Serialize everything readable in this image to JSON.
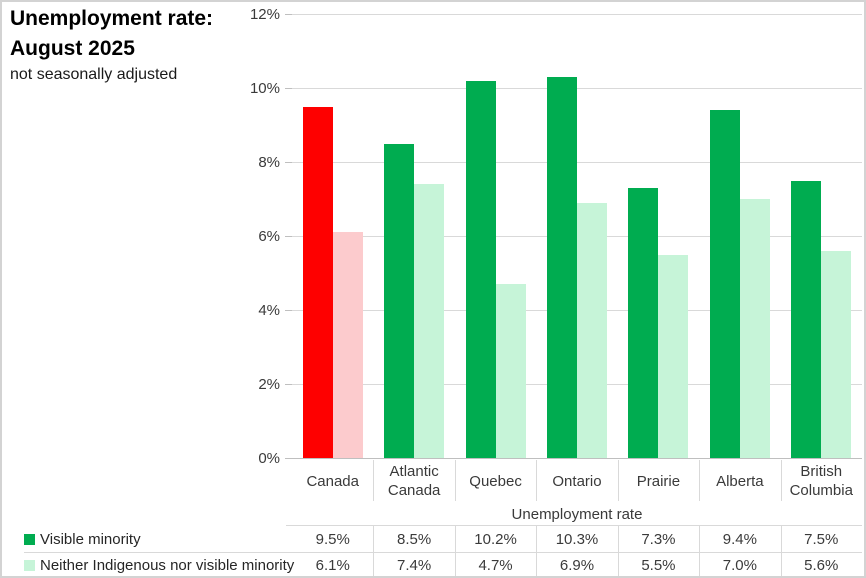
{
  "title": {
    "line1": "Unemployment rate:",
    "line2": "August 2025",
    "subtitle": "not seasonally adjusted"
  },
  "chart_data": {
    "type": "bar",
    "categories": [
      "Canada",
      "Atlantic Canada",
      "Quebec",
      "Ontario",
      "Prairie",
      "Alberta",
      "British Columbia"
    ],
    "series": [
      {
        "name": "Visible minority",
        "values": [
          9.5,
          8.5,
          10.2,
          10.3,
          7.3,
          9.4,
          7.5
        ]
      },
      {
        "name": "Neither Indigenous nor visible minority",
        "values": [
          6.1,
          7.4,
          4.7,
          6.9,
          5.5,
          7.0,
          5.6
        ]
      }
    ],
    "xlabel": "Unemployment rate",
    "ylabel": "",
    "ylim": [
      0,
      12
    ],
    "ytick_step": 2,
    "ytick_suffix": "%",
    "grid": true,
    "legend_position": "bottom-data-table",
    "value_suffix": "%",
    "value_decimals": 1,
    "colors": {
      "series1_default": "#00ac50",
      "series2_default": "#c6f4d8",
      "series1_highlight": "#fe0000",
      "series2_highlight": "#fccbcd",
      "highlight_category": "Canada",
      "gridline": "#d9d9d9",
      "axis_line": "#bfbfbf",
      "table_line": "#d9d9d9"
    }
  }
}
